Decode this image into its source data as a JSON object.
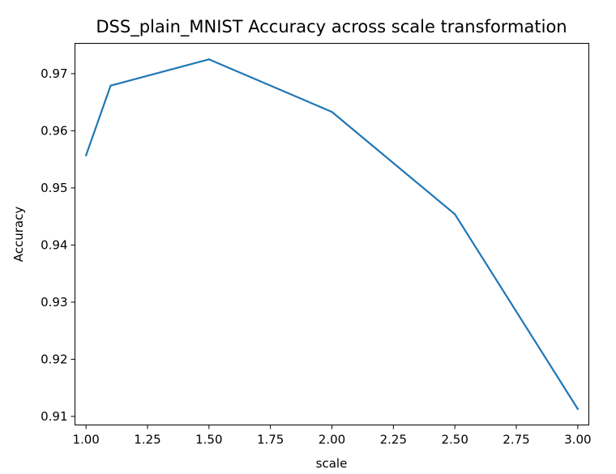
{
  "chart_data": {
    "type": "line",
    "title": "DSS_plain_MNIST Accuracy across scale transformation",
    "xlabel": "scale",
    "ylabel": "Accuracy",
    "xlim": [
      0.955,
      3.045
    ],
    "ylim": [
      0.9085,
      0.9753
    ],
    "x_ticks": [
      1.0,
      1.25,
      1.5,
      1.75,
      2.0,
      2.25,
      2.5,
      2.75,
      3.0
    ],
    "x_tick_labels": [
      "1.00",
      "1.25",
      "1.50",
      "1.75",
      "2.00",
      "2.25",
      "2.50",
      "2.75",
      "3.00"
    ],
    "y_ticks": [
      0.91,
      0.92,
      0.93,
      0.94,
      0.95,
      0.96,
      0.97
    ],
    "y_tick_labels": [
      "0.91",
      "0.92",
      "0.93",
      "0.94",
      "0.95",
      "0.96",
      "0.97"
    ],
    "grid": false,
    "series": [
      {
        "color": "#1f77b4",
        "x": [
          1.0,
          1.1,
          1.5,
          2.0,
          2.5,
          3.0
        ],
        "y": [
          0.9557,
          0.9679,
          0.9725,
          0.9633,
          0.9454,
          0.9113
        ]
      }
    ]
  }
}
